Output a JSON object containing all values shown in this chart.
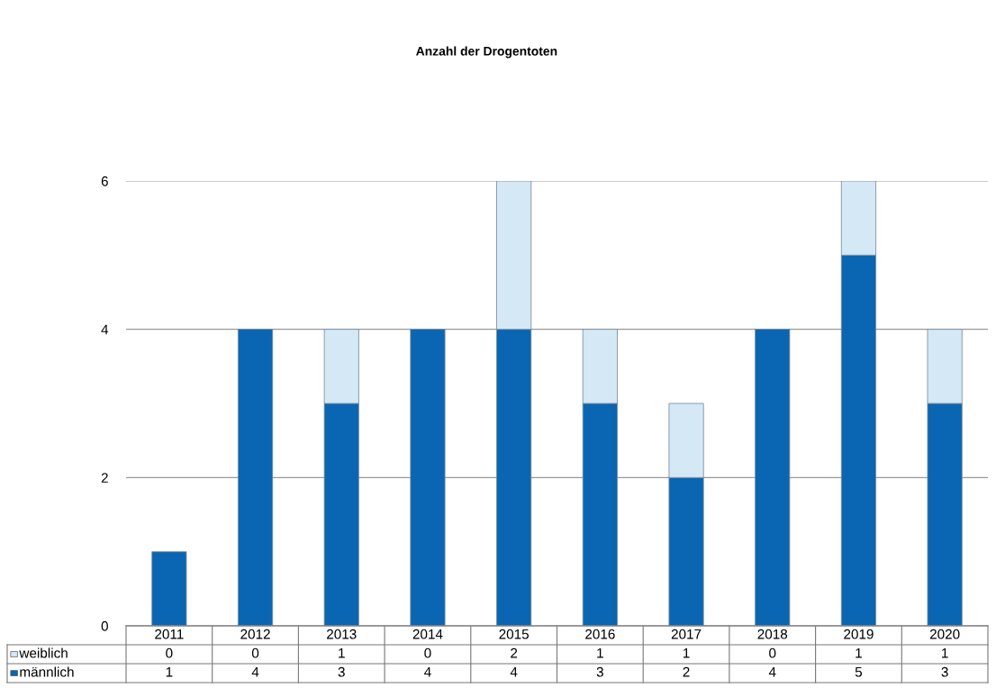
{
  "chart_data": {
    "type": "bar",
    "title": "Anzahl der Drogentoten",
    "stacked": true,
    "categories": [
      "2011",
      "2012",
      "2013",
      "2014",
      "2015",
      "2016",
      "2017",
      "2018",
      "2019",
      "2020"
    ],
    "series": [
      {
        "name": "männlich",
        "color": "#0a66b2",
        "values": [
          1,
          4,
          3,
          4,
          4,
          3,
          2,
          4,
          5,
          3
        ]
      },
      {
        "name": "weiblich",
        "color": "#d4e8f6",
        "values": [
          0,
          0,
          1,
          0,
          2,
          1,
          1,
          0,
          1,
          1
        ]
      }
    ],
    "ylim": [
      0,
      6
    ],
    "yticks": [
      0,
      2,
      4,
      6
    ],
    "grid": "y",
    "data_labels": true,
    "legend": "bottom left"
  }
}
